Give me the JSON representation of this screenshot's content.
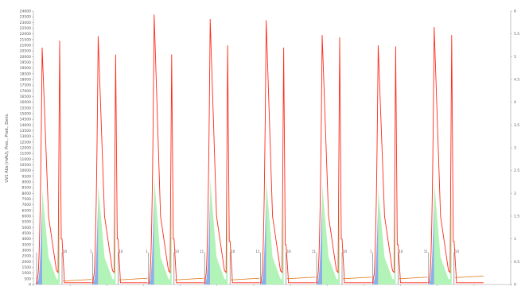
{
  "chart_data": {
    "type": "line",
    "ylabel": "UV1 Abs (mAU), Pres., Prod., Dens.",
    "ylim_left": [
      0,
      24000
    ],
    "yticks_left": [
      0,
      500,
      1000,
      1500,
      2000,
      2500,
      3000,
      3500,
      4000,
      4500,
      5000,
      5500,
      6000,
      6500,
      7000,
      7500,
      8000,
      8500,
      9000,
      9500,
      10000,
      10500,
      11000,
      11500,
      12000,
      12500,
      13000,
      13500,
      14000,
      14500,
      15000,
      15500,
      16000,
      16500,
      17000,
      17500,
      18000,
      18500,
      19000,
      19500,
      20000,
      20500,
      21000,
      21500,
      22000,
      22500,
      23000,
      23500,
      24000
    ],
    "ylim_right": [
      0,
      6
    ],
    "yticks_right": [
      "0",
      "0.5",
      "1",
      "1.5",
      "2",
      "2.5",
      "3",
      "3.5",
      "4",
      "4.5",
      "5",
      "5.5",
      "6"
    ],
    "grid": false,
    "legend": "none",
    "colors": {
      "signal": "#ff2a1a",
      "baseline": "#e07a1a",
      "fill_early": "#7fa6e6",
      "fill_main": "#aef2b4",
      "markers": "#6e6e6e"
    },
    "cycles": [
      {
        "start_label": "",
        "end_label": "10",
        "peak1": 20800,
        "peak2": 21400,
        "tail": 4000,
        "baseline": 300
      },
      {
        "start_label": "1",
        "end_label": "10",
        "peak1": 21800,
        "peak2": 20200,
        "tail": 4000,
        "baseline": 400
      },
      {
        "start_label": "1",
        "end_label": "10",
        "peak1": 23700,
        "peak2": 20200,
        "tail": 4000,
        "baseline": 400
      },
      {
        "start_label": "11",
        "end_label": "10",
        "peak1": 23300,
        "peak2": 21000,
        "tail": 3800,
        "baseline": 400
      },
      {
        "start_label": "11",
        "end_label": "10",
        "peak1": 23200,
        "peak2": 20800,
        "tail": 3500,
        "baseline": 500
      },
      {
        "start_label": "11",
        "end_label": "10",
        "peak1": 21900,
        "peak2": 21700,
        "tail": 4000,
        "baseline": 500
      },
      {
        "start_label": "1",
        "end_label": "10",
        "peak1": 21000,
        "peak2": 20900,
        "tail": 3500,
        "baseline": 500
      },
      {
        "start_label": "11",
        "end_label": "10",
        "peak1": 22600,
        "peak2": 21900,
        "tail": 3800,
        "baseline": 600
      }
    ]
  }
}
